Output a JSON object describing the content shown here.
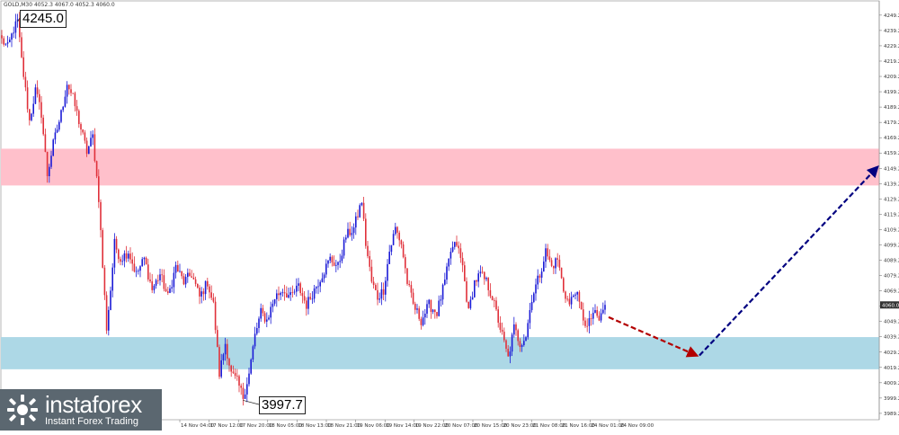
{
  "header": {
    "symbol_info": "GOLD,M30  4052.3 4067.0 4052.3 4060.0"
  },
  "callouts": {
    "high_label": "4245.0",
    "low_label": "3997.7"
  },
  "logo": {
    "name": "instaforex",
    "tagline": "Instant Forex Trading"
  },
  "colors": {
    "up_candle": "#1a1ad6",
    "down_candle": "#e0303a",
    "resistance_zone": "#ffc0cb",
    "support_zone": "#add8e6",
    "forecast_down_arrow": "#b30000",
    "forecast_up_arrow": "#000080",
    "current_price_box": "#333333"
  },
  "chart_data": {
    "type": "candlestick",
    "instrument": "GOLD",
    "timeframe": "M30",
    "y_axis_ticks": [
      4249.2,
      4239.2,
      4229.2,
      4219.2,
      4209.2,
      4199.2,
      4189.2,
      4179.2,
      4169.2,
      4159.2,
      4149.2,
      4139.2,
      4129.2,
      4119.2,
      4109.2,
      4099.2,
      4089.2,
      4079.2,
      4069.2,
      4059.2,
      4049.2,
      4039.2,
      4029.2,
      4019.2,
      4009.2,
      3999.2,
      3989.2
    ],
    "ylim": [
      3987.4,
      4254.4
    ],
    "x_axis_ticks": [
      "14 Nov 04:00",
      "17 Nov 12:00",
      "17 Nov 20:00",
      "18 Nov 05:00",
      "18 Nov 13:00",
      "18 Nov 21:00",
      "19 Nov 06:00",
      "19 Nov 14:00",
      "19 Nov 22:00",
      "20 Nov 07:00",
      "20 Nov 15:00",
      "20 Nov 23:00",
      "21 Nov 08:00",
      "21 Nov 16:00",
      "24 Nov 01:00",
      "24 Nov 09:00"
    ],
    "current_price": "4060.0",
    "zones": [
      {
        "name": "resistance",
        "from": 4138.0,
        "to": 4162.0
      },
      {
        "name": "support",
        "from": 4018.0,
        "to": 4039.0
      }
    ],
    "annotations": [
      {
        "label": "4245.0",
        "price": 4245.0
      },
      {
        "label": "3997.7",
        "price": 3997.7
      }
    ],
    "forecast": [
      {
        "direction": "down",
        "from_price": 4052,
        "to_price": 4027
      },
      {
        "direction": "up",
        "from_price": 4027,
        "to_price": 4150
      }
    ],
    "price_path": [
      {
        "i": 0,
        "p": 4233
      },
      {
        "i": 3,
        "p": 4228
      },
      {
        "i": 6,
        "p": 4240
      },
      {
        "i": 8,
        "p": 4245
      },
      {
        "i": 10,
        "p": 4220
      },
      {
        "i": 14,
        "p": 4180
      },
      {
        "i": 17,
        "p": 4200
      },
      {
        "i": 20,
        "p": 4185
      },
      {
        "i": 23,
        "p": 4145
      },
      {
        "i": 26,
        "p": 4165
      },
      {
        "i": 30,
        "p": 4185
      },
      {
        "i": 33,
        "p": 4205
      },
      {
        "i": 36,
        "p": 4195
      },
      {
        "i": 40,
        "p": 4175
      },
      {
        "i": 43,
        "p": 4160
      },
      {
        "i": 46,
        "p": 4170
      },
      {
        "i": 49,
        "p": 4130
      },
      {
        "i": 51,
        "p": 4085
      },
      {
        "i": 53,
        "p": 4045
      },
      {
        "i": 55,
        "p": 4070
      },
      {
        "i": 57,
        "p": 4100
      },
      {
        "i": 60,
        "p": 4090
      },
      {
        "i": 64,
        "p": 4095
      },
      {
        "i": 68,
        "p": 4080
      },
      {
        "i": 72,
        "p": 4090
      },
      {
        "i": 76,
        "p": 4070
      },
      {
        "i": 80,
        "p": 4080
      },
      {
        "i": 84,
        "p": 4065
      },
      {
        "i": 88,
        "p": 4085
      },
      {
        "i": 92,
        "p": 4075
      },
      {
        "i": 96,
        "p": 4080
      },
      {
        "i": 100,
        "p": 4065
      },
      {
        "i": 104,
        "p": 4075
      },
      {
        "i": 107,
        "p": 4060
      },
      {
        "i": 110,
        "p": 4015
      },
      {
        "i": 113,
        "p": 4035
      },
      {
        "i": 116,
        "p": 4015
      },
      {
        "i": 119,
        "p": 4010
      },
      {
        "i": 122,
        "p": 4000
      },
      {
        "i": 125,
        "p": 4015
      },
      {
        "i": 128,
        "p": 4040
      },
      {
        "i": 131,
        "p": 4055
      },
      {
        "i": 134,
        "p": 4050
      },
      {
        "i": 138,
        "p": 4065
      },
      {
        "i": 142,
        "p": 4070
      },
      {
        "i": 146,
        "p": 4065
      },
      {
        "i": 150,
        "p": 4072
      },
      {
        "i": 154,
        "p": 4060
      },
      {
        "i": 158,
        "p": 4070
      },
      {
        "i": 162,
        "p": 4080
      },
      {
        "i": 166,
        "p": 4090
      },
      {
        "i": 170,
        "p": 4085
      },
      {
        "i": 174,
        "p": 4105
      },
      {
        "i": 178,
        "p": 4110
      },
      {
        "i": 182,
        "p": 4128
      },
      {
        "i": 184,
        "p": 4100
      },
      {
        "i": 187,
        "p": 4075
      },
      {
        "i": 190,
        "p": 4065
      },
      {
        "i": 193,
        "p": 4070
      },
      {
        "i": 196,
        "p": 4095
      },
      {
        "i": 199,
        "p": 4110
      },
      {
        "i": 202,
        "p": 4100
      },
      {
        "i": 205,
        "p": 4075
      },
      {
        "i": 208,
        "p": 4060
      },
      {
        "i": 212,
        "p": 4050
      },
      {
        "i": 216,
        "p": 4060
      },
      {
        "i": 220,
        "p": 4055
      },
      {
        "i": 224,
        "p": 4075
      },
      {
        "i": 227,
        "p": 4095
      },
      {
        "i": 230,
        "p": 4100
      },
      {
        "i": 233,
        "p": 4085
      },
      {
        "i": 236,
        "p": 4055
      },
      {
        "i": 239,
        "p": 4075
      },
      {
        "i": 242,
        "p": 4080
      },
      {
        "i": 245,
        "p": 4075
      },
      {
        "i": 248,
        "p": 4065
      },
      {
        "i": 251,
        "p": 4050
      },
      {
        "i": 254,
        "p": 4035
      },
      {
        "i": 256,
        "p": 4025
      },
      {
        "i": 259,
        "p": 4045
      },
      {
        "i": 262,
        "p": 4035
      },
      {
        "i": 265,
        "p": 4040
      },
      {
        "i": 268,
        "p": 4065
      },
      {
        "i": 272,
        "p": 4080
      },
      {
        "i": 275,
        "p": 4095
      },
      {
        "i": 278,
        "p": 4085
      },
      {
        "i": 281,
        "p": 4090
      },
      {
        "i": 284,
        "p": 4070
      },
      {
        "i": 287,
        "p": 4060
      },
      {
        "i": 290,
        "p": 4070
      },
      {
        "i": 293,
        "p": 4055
      },
      {
        "i": 296,
        "p": 4045
      },
      {
        "i": 299,
        "p": 4055
      },
      {
        "i": 302,
        "p": 4050
      },
      {
        "i": 305,
        "p": 4060
      }
    ]
  }
}
